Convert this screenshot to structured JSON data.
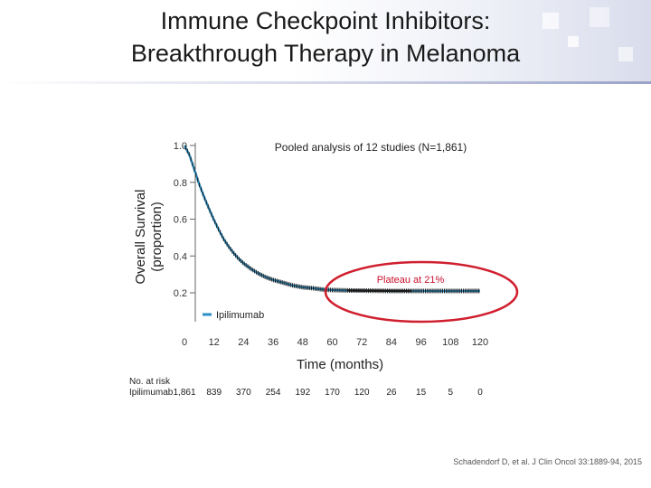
{
  "slide": {
    "title_line1": "Immune Checkpoint Inhibitors:",
    "title_line2": "Breakthrough Therapy in Melanoma",
    "citation": "Schadendorf D, et al. J Clin Oncol 33:1889-94, 2015"
  },
  "chart_data": {
    "type": "line",
    "title": "Pooled analysis of 12 studies (N=1,861)",
    "xlabel": "Time (months)",
    "ylabel": "Overall Survival",
    "ylabel_sub": "(proportion)",
    "xlim": [
      0,
      120
    ],
    "ylim": [
      0,
      1.0
    ],
    "x_ticks": [
      "0",
      "12",
      "24",
      "36",
      "48",
      "60",
      "72",
      "84",
      "96",
      "108",
      "120"
    ],
    "y_ticks": [
      "0.2",
      "0.4",
      "0.6",
      "0.8",
      "1.0"
    ],
    "legend": {
      "position": "lower-left",
      "entries": [
        "Ipilimumab"
      ]
    },
    "annotation": {
      "text": "Plateau at 21%",
      "color": "#c8102e"
    },
    "series": [
      {
        "name": "Ipilimumab",
        "color": "#2a8fc4",
        "censor_color": "#1a1a1a",
        "x": [
          0,
          2,
          4,
          6,
          8,
          10,
          12,
          14,
          16,
          18,
          20,
          22,
          24,
          27,
          30,
          33,
          36,
          40,
          44,
          48,
          52,
          56,
          60,
          66,
          72,
          78,
          84,
          90,
          96,
          102,
          108,
          114,
          120
        ],
        "y": [
          1.0,
          0.95,
          0.87,
          0.79,
          0.72,
          0.655,
          0.595,
          0.54,
          0.49,
          0.45,
          0.415,
          0.385,
          0.36,
          0.33,
          0.305,
          0.285,
          0.27,
          0.255,
          0.24,
          0.23,
          0.225,
          0.218,
          0.215,
          0.213,
          0.212,
          0.211,
          0.21,
          0.21,
          0.21,
          0.21,
          0.21,
          0.21,
          0.21
        ]
      }
    ],
    "at_risk": {
      "title": "No. at risk",
      "label": "Ipilimumab",
      "values": [
        "1,861",
        "839",
        "370",
        "254",
        "192",
        "170",
        "120",
        "26",
        "15",
        "5",
        "0"
      ]
    }
  }
}
